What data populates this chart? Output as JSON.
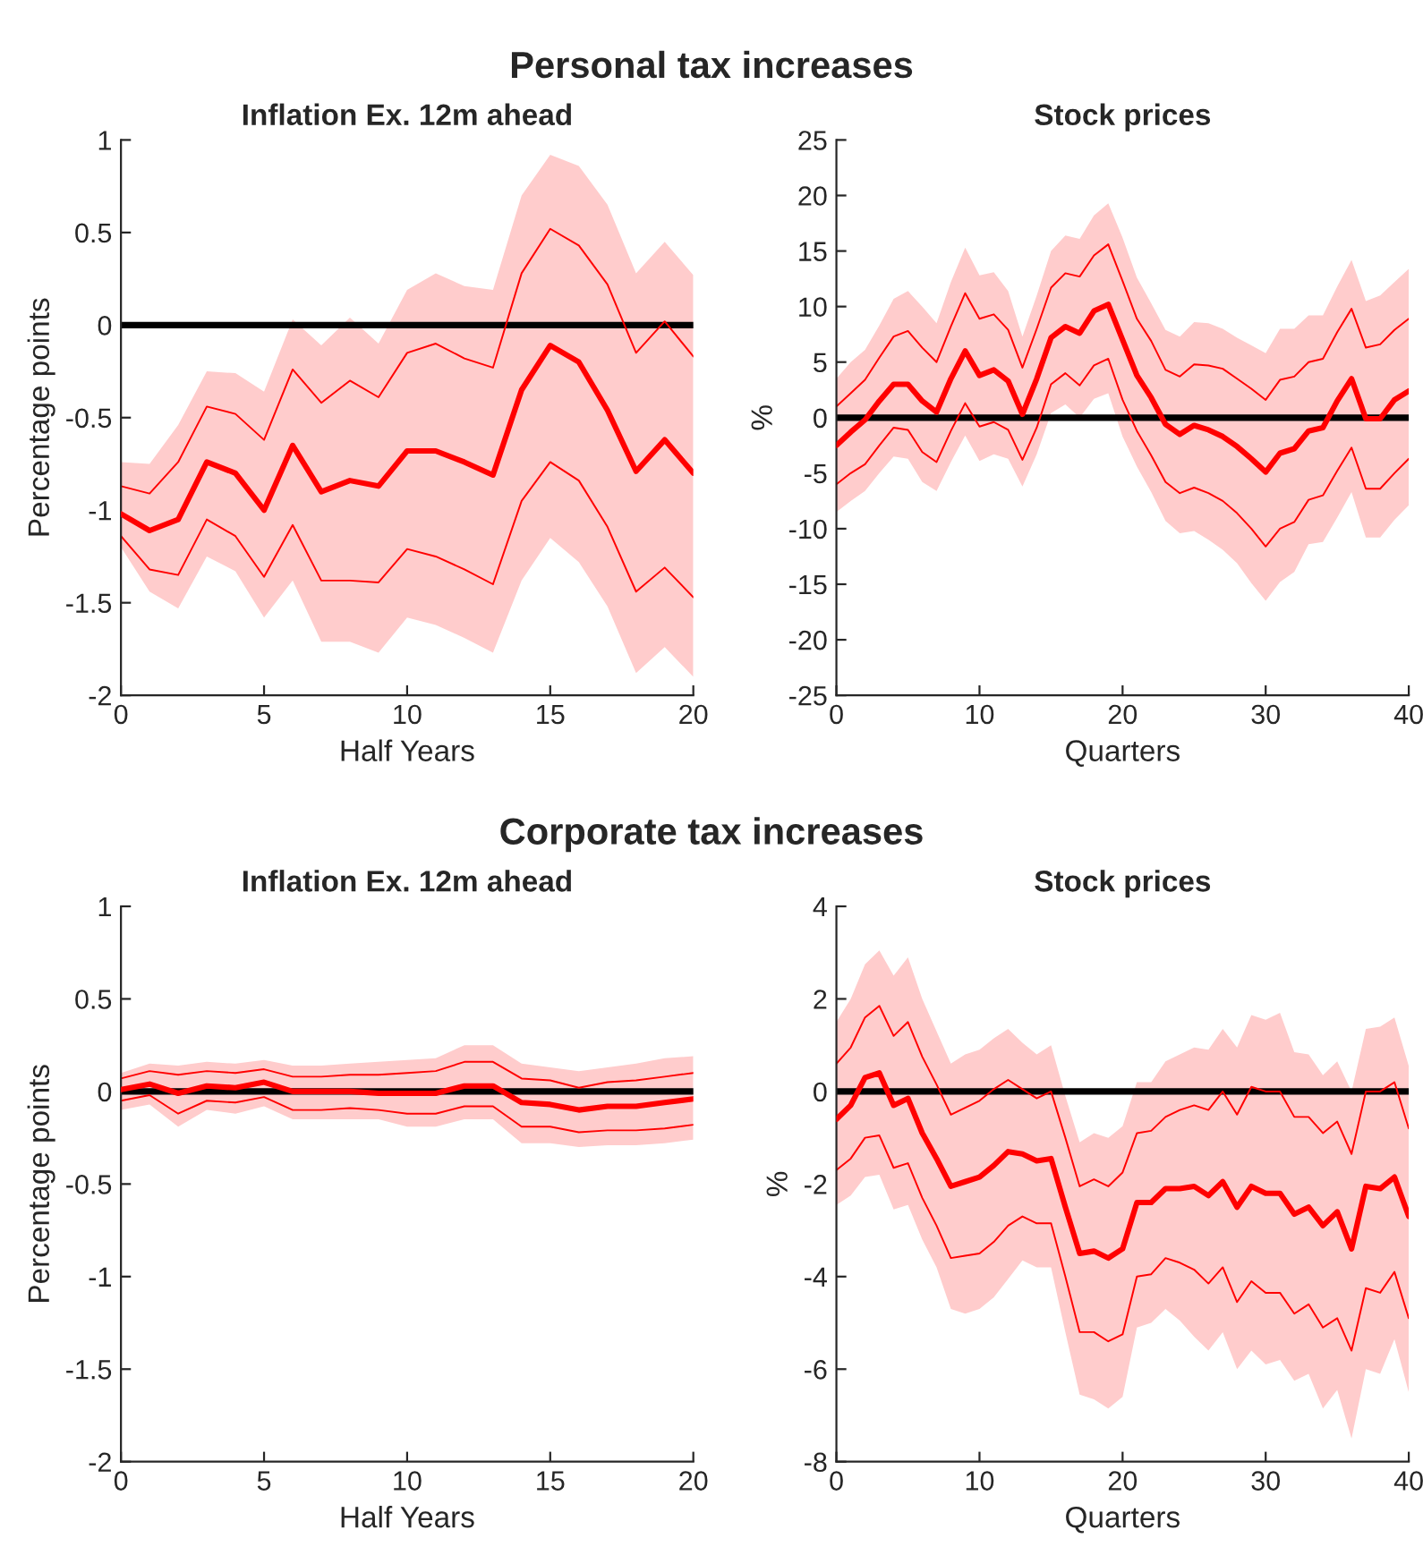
{
  "chart_data": [
    {
      "type": "line",
      "title": "Personal tax increases",
      "subtitle": "Inflation Ex. 12m ahead",
      "xlabel": "Half Years",
      "ylabel": "Percentage points",
      "xlim": [
        0,
        20
      ],
      "xticks": [
        0,
        5,
        10,
        15,
        20
      ],
      "ylim": [
        -2,
        1
      ],
      "yticks": [
        -2,
        -1.5,
        -1,
        -0.5,
        0,
        0.5,
        1
      ],
      "x": [
        0,
        1,
        2,
        3,
        4,
        5,
        6,
        7,
        8,
        9,
        10,
        11,
        12,
        13,
        14,
        15,
        16,
        17,
        18,
        19,
        20
      ],
      "ref_lines": [
        {
          "axis": "y",
          "value": 0,
          "color": "#000000"
        }
      ],
      "series": [
        {
          "color": "#ff0000",
          "values": [
            -1.02,
            -1.11,
            -1.05,
            -0.74,
            -0.8,
            -1.0,
            -0.65,
            -0.9,
            -0.84,
            -0.87,
            -0.68,
            -0.68,
            -0.74,
            -0.81,
            -0.35,
            -0.11,
            -0.2,
            -0.46,
            -0.79,
            -0.62,
            -0.8
          ],
          "upper": [
            -0.74,
            -0.75,
            -0.54,
            -0.25,
            -0.26,
            -0.36,
            0.03,
            -0.11,
            0.04,
            -0.1,
            0.19,
            0.28,
            0.21,
            0.19,
            0.7,
            0.92,
            0.86,
            0.65,
            0.28,
            0.45,
            0.27
          ],
          "lower": [
            -1.2,
            -1.44,
            -1.53,
            -1.25,
            -1.33,
            -1.58,
            -1.38,
            -1.71,
            -1.71,
            -1.77,
            -1.58,
            -1.62,
            -1.69,
            -1.77,
            -1.38,
            -1.15,
            -1.28,
            -1.52,
            -1.88,
            -1.74,
            -1.9
          ]
        },
        {
          "color": "#ff0000",
          "values": [
            -0.87,
            -0.91,
            -0.74,
            -0.44,
            -0.48,
            -0.62,
            -0.24,
            -0.42,
            -0.3,
            -0.39,
            -0.15,
            -0.1,
            -0.18,
            -0.23,
            0.28,
            0.52,
            0.43,
            0.22,
            -0.15,
            0.02,
            -0.17
          ]
        },
        {
          "color": "#ff0000",
          "values": [
            -1.14,
            -1.32,
            -1.35,
            -1.05,
            -1.14,
            -1.36,
            -1.08,
            -1.38,
            -1.38,
            -1.39,
            -1.21,
            -1.25,
            -1.32,
            -1.4,
            -0.95,
            -0.74,
            -0.84,
            -1.09,
            -1.44,
            -1.31,
            -1.47
          ]
        }
      ]
    },
    {
      "type": "line",
      "subtitle": "Stock prices",
      "xlabel": "Quarters",
      "ylabel": "%",
      "xlim": [
        0,
        40
      ],
      "xticks": [
        0,
        10,
        20,
        30,
        40
      ],
      "ylim": [
        -25,
        25
      ],
      "yticks": [
        -25,
        -20,
        -15,
        -10,
        -5,
        0,
        5,
        10,
        15,
        20,
        25
      ],
      "x": [
        0,
        1,
        2,
        3,
        4,
        5,
        6,
        7,
        8,
        9,
        10,
        11,
        12,
        13,
        14,
        15,
        16,
        17,
        18,
        19,
        20,
        21,
        22,
        23,
        24,
        25,
        26,
        27,
        28,
        29,
        30,
        31,
        32,
        33,
        34,
        35,
        36,
        37,
        38,
        39,
        40
      ],
      "ref_lines": [
        {
          "axis": "y",
          "value": 0,
          "color": "#000000"
        }
      ],
      "series": [
        {
          "color": "#ff0000",
          "values": [
            -2.5,
            -1.3,
            -0.2,
            1.5,
            3.0,
            3.0,
            1.5,
            0.5,
            3.5,
            6.0,
            3.8,
            4.3,
            3.3,
            0.3,
            3.5,
            7.2,
            8.2,
            7.6,
            9.6,
            10.2,
            7.0,
            3.8,
            1.8,
            -0.6,
            -1.5,
            -0.7,
            -1.1,
            -1.7,
            -2.6,
            -3.7,
            -4.9,
            -3.2,
            -2.8,
            -1.2,
            -0.9,
            1.5,
            3.5,
            -0.1,
            -0.1,
            1.6,
            2.4
          ],
          "upper": [
            3.5,
            5.0,
            6.1,
            8.3,
            10.7,
            11.4,
            10.0,
            8.5,
            12.2,
            15.3,
            12.8,
            13.1,
            11.4,
            7.3,
            11.0,
            15.0,
            16.4,
            16.1,
            18.2,
            19.3,
            16.2,
            12.6,
            10.3,
            7.9,
            7.3,
            8.6,
            8.5,
            8.0,
            7.2,
            6.5,
            5.8,
            8.0,
            8.0,
            9.2,
            9.2,
            11.8,
            14.2,
            10.5,
            11.0,
            12.2,
            13.4
          ],
          "lower": [
            -8.5,
            -7.5,
            -6.6,
            -5.0,
            -3.5,
            -3.7,
            -5.8,
            -6.6,
            -4.0,
            -1.6,
            -3.9,
            -3.3,
            -3.7,
            -6.2,
            -3.3,
            0.4,
            1.2,
            0.0,
            1.7,
            2.2,
            -1.7,
            -4.4,
            -6.7,
            -9.3,
            -10.4,
            -10.2,
            -11.0,
            -11.9,
            -13.1,
            -14.9,
            -16.5,
            -14.8,
            -13.9,
            -11.4,
            -11.2,
            -9.0,
            -6.7,
            -10.8,
            -10.8,
            -9.2,
            -7.9
          ]
        },
        {
          "color": "#ff0000",
          "values": [
            1.0,
            2.2,
            3.4,
            5.4,
            7.3,
            7.8,
            6.3,
            5.0,
            8.2,
            11.2,
            8.9,
            9.3,
            7.9,
            4.5,
            8.0,
            11.7,
            13.0,
            12.7,
            14.6,
            15.6,
            12.3,
            8.9,
            6.9,
            4.3,
            3.7,
            4.8,
            4.7,
            4.4,
            3.5,
            2.6,
            1.6,
            3.4,
            3.7,
            5.0,
            5.3,
            7.7,
            9.8,
            6.3,
            6.6,
            7.9,
            8.9
          ]
        },
        {
          "color": "#ff0000",
          "values": [
            -6.0,
            -5.0,
            -4.2,
            -2.5,
            -0.9,
            -1.1,
            -3.1,
            -4.0,
            -1.2,
            1.3,
            -0.8,
            -0.4,
            -1.1,
            -3.8,
            -0.9,
            3.0,
            4.0,
            2.9,
            4.7,
            5.3,
            1.6,
            -1.2,
            -3.4,
            -5.8,
            -6.8,
            -6.3,
            -6.8,
            -7.5,
            -8.6,
            -10.0,
            -11.6,
            -10.0,
            -9.4,
            -7.4,
            -7.0,
            -4.8,
            -2.7,
            -6.4,
            -6.4,
            -5.0,
            -3.7
          ]
        }
      ]
    },
    {
      "type": "line",
      "title": "Corporate tax increases",
      "subtitle": "Inflation Ex. 12m ahead",
      "xlabel": "Half Years",
      "ylabel": "Percentage points",
      "xlim": [
        0,
        20
      ],
      "xticks": [
        0,
        5,
        10,
        15,
        20
      ],
      "ylim": [
        -2,
        1
      ],
      "yticks": [
        -2,
        -1.5,
        -1,
        -0.5,
        0,
        0.5,
        1
      ],
      "x": [
        0,
        1,
        2,
        3,
        4,
        5,
        6,
        7,
        8,
        9,
        10,
        11,
        12,
        13,
        14,
        15,
        16,
        17,
        18,
        19,
        20
      ],
      "ref_lines": [
        {
          "axis": "y",
          "value": 0,
          "color": "#000000"
        }
      ],
      "series": [
        {
          "color": "#ff0000",
          "values": [
            0.01,
            0.04,
            -0.01,
            0.03,
            0.02,
            0.05,
            0.0,
            0.0,
            0.0,
            -0.01,
            -0.01,
            -0.01,
            0.03,
            0.03,
            -0.06,
            -0.07,
            -0.1,
            -0.08,
            -0.08,
            -0.06,
            -0.04
          ],
          "upper": [
            0.1,
            0.15,
            0.14,
            0.16,
            0.15,
            0.17,
            0.14,
            0.14,
            0.15,
            0.16,
            0.17,
            0.18,
            0.25,
            0.25,
            0.15,
            0.13,
            0.11,
            0.13,
            0.15,
            0.18,
            0.19
          ],
          "lower": [
            -0.1,
            -0.07,
            -0.19,
            -0.1,
            -0.12,
            -0.08,
            -0.15,
            -0.15,
            -0.15,
            -0.15,
            -0.19,
            -0.19,
            -0.15,
            -0.15,
            -0.28,
            -0.28,
            -0.3,
            -0.29,
            -0.29,
            -0.28,
            -0.26
          ]
        },
        {
          "color": "#ff0000",
          "values": [
            0.07,
            0.11,
            0.09,
            0.11,
            0.1,
            0.12,
            0.08,
            0.08,
            0.09,
            0.09,
            0.1,
            0.11,
            0.16,
            0.16,
            0.07,
            0.06,
            0.02,
            0.05,
            0.06,
            0.08,
            0.1
          ]
        },
        {
          "color": "#ff0000",
          "values": [
            -0.05,
            -0.02,
            -0.12,
            -0.05,
            -0.06,
            -0.03,
            -0.1,
            -0.1,
            -0.09,
            -0.1,
            -0.12,
            -0.12,
            -0.08,
            -0.08,
            -0.19,
            -0.19,
            -0.22,
            -0.21,
            -0.21,
            -0.2,
            -0.18
          ]
        }
      ]
    },
    {
      "type": "line",
      "subtitle": "Stock prices",
      "xlabel": "Quarters",
      "ylabel": "%",
      "xlim": [
        0,
        40
      ],
      "xticks": [
        0,
        10,
        20,
        30,
        40
      ],
      "ylim": [
        -8,
        4
      ],
      "yticks": [
        -8,
        -6,
        -4,
        -2,
        0,
        2,
        4
      ],
      "x": [
        0,
        1,
        2,
        3,
        4,
        5,
        6,
        7,
        8,
        9,
        10,
        11,
        12,
        13,
        14,
        15,
        16,
        17,
        18,
        19,
        20,
        21,
        22,
        23,
        24,
        25,
        26,
        27,
        28,
        29,
        30,
        31,
        32,
        33,
        34,
        35,
        36,
        37,
        38,
        39,
        40
      ],
      "ref_lines": [
        {
          "axis": "y",
          "value": 0,
          "color": "#000000"
        }
      ],
      "series": [
        {
          "color": "#ff0000",
          "values": [
            -0.6,
            -0.3,
            0.3,
            0.4,
            -0.3,
            -0.15,
            -0.9,
            -1.45,
            -2.05,
            -1.95,
            -1.85,
            -1.6,
            -1.3,
            -1.35,
            -1.5,
            -1.45,
            -2.5,
            -3.5,
            -3.45,
            -3.6,
            -3.4,
            -2.4,
            -2.4,
            -2.1,
            -2.1,
            -2.05,
            -2.25,
            -1.95,
            -2.5,
            -2.05,
            -2.2,
            -2.2,
            -2.65,
            -2.5,
            -2.9,
            -2.6,
            -3.4,
            -2.05,
            -2.1,
            -1.85,
            -2.7
          ],
          "upper": [
            1.5,
            2.0,
            2.75,
            3.05,
            2.5,
            2.9,
            2.0,
            1.3,
            0.6,
            0.8,
            0.9,
            1.15,
            1.35,
            1.05,
            0.8,
            1.0,
            -0.1,
            -1.1,
            -0.9,
            -1.0,
            -0.75,
            0.2,
            0.2,
            0.65,
            0.8,
            0.95,
            0.9,
            1.35,
            0.95,
            1.65,
            1.55,
            1.7,
            0.85,
            0.8,
            0.35,
            0.65,
            0.0,
            1.35,
            1.4,
            1.6,
            0.55
          ],
          "lower": [
            -2.45,
            -2.25,
            -1.85,
            -1.8,
            -2.55,
            -2.45,
            -3.2,
            -3.8,
            -4.7,
            -4.8,
            -4.7,
            -4.45,
            -4.05,
            -3.65,
            -3.8,
            -3.8,
            -5.2,
            -6.55,
            -6.65,
            -6.85,
            -6.6,
            -5.1,
            -5.0,
            -4.7,
            -4.95,
            -5.3,
            -5.6,
            -5.2,
            -6.0,
            -5.6,
            -5.9,
            -5.8,
            -6.25,
            -6.1,
            -6.85,
            -6.45,
            -7.5,
            -6.0,
            -6.1,
            -5.35,
            -6.5
          ]
        },
        {
          "color": "#ff0000",
          "values": [
            0.6,
            0.95,
            1.6,
            1.85,
            1.2,
            1.5,
            0.75,
            0.15,
            -0.5,
            -0.35,
            -0.2,
            0.05,
            0.25,
            0.05,
            -0.15,
            0.0,
            -1.0,
            -2.05,
            -1.9,
            -2.05,
            -1.75,
            -0.9,
            -0.85,
            -0.55,
            -0.4,
            -0.3,
            -0.4,
            0.0,
            -0.5,
            0.1,
            0.0,
            0.0,
            -0.55,
            -0.55,
            -0.9,
            -0.65,
            -1.35,
            0.0,
            0.0,
            0.2,
            -0.8
          ]
        },
        {
          "color": "#ff0000",
          "values": [
            -1.7,
            -1.45,
            -1.0,
            -0.95,
            -1.65,
            -1.55,
            -2.3,
            -2.9,
            -3.6,
            -3.55,
            -3.5,
            -3.25,
            -2.9,
            -2.7,
            -2.85,
            -2.85,
            -4.0,
            -5.2,
            -5.2,
            -5.4,
            -5.25,
            -4.0,
            -3.95,
            -3.6,
            -3.7,
            -3.85,
            -4.15,
            -3.8,
            -4.55,
            -4.1,
            -4.35,
            -4.35,
            -4.8,
            -4.6,
            -5.1,
            -4.9,
            -5.6,
            -4.25,
            -4.35,
            -3.9,
            -4.9
          ]
        }
      ]
    }
  ]
}
